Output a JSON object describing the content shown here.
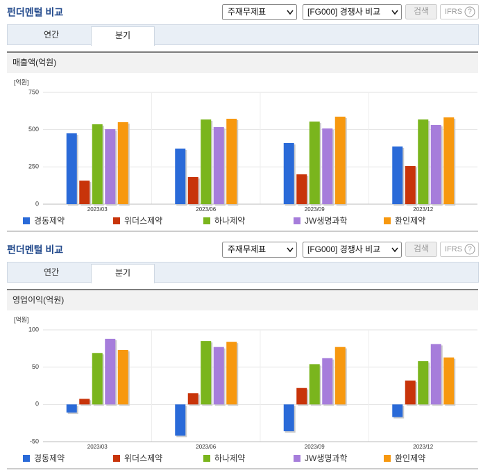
{
  "panels": [
    {
      "title": "펀더멘털 비교",
      "select1": "주재무제표",
      "select2": "[FG000] 경쟁사 비교",
      "search": "검색",
      "ifrs": "IFRS",
      "help": "?",
      "tabs": [
        "연간",
        "분기"
      ]
    },
    {
      "title": "펀더멘털 비교",
      "select1": "주재무제표",
      "select2": "[FG000] 경쟁사 비교",
      "search": "검색",
      "ifrs": "IFRS",
      "help": "?",
      "tabs": [
        "연간",
        "분기"
      ]
    }
  ],
  "chart_data": [
    {
      "type": "bar",
      "title": "매출액(억원)",
      "ylabel": "[억원]",
      "categories": [
        "2023/03",
        "2023/06",
        "2023/09",
        "2023/12"
      ],
      "series": [
        {
          "name": "경동제약",
          "color": "#2a6ad8",
          "values": [
            475,
            373,
            410,
            387
          ]
        },
        {
          "name": "위더스제약",
          "color": "#c8340a",
          "values": [
            158,
            182,
            200,
            256
          ]
        },
        {
          "name": "하나제약",
          "color": "#7ab51d",
          "values": [
            536,
            568,
            554,
            568
          ]
        },
        {
          "name": "JW생명과학",
          "color": "#a67ddb",
          "values": [
            503,
            517,
            508,
            531
          ]
        },
        {
          "name": "환인제약",
          "color": "#f7980f",
          "values": [
            550,
            573,
            587,
            582
          ]
        }
      ],
      "ylim": [
        0,
        750
      ],
      "yticks": [
        0,
        250,
        500,
        750
      ],
      "grid": true
    },
    {
      "type": "bar",
      "title": "영업이익(억원)",
      "ylabel": "[억원]",
      "categories": [
        "2023/03",
        "2023/06",
        "2023/09",
        "2023/12"
      ],
      "series": [
        {
          "name": "경동제약",
          "color": "#2a6ad8",
          "values": [
            -11,
            -42,
            -36,
            -17
          ]
        },
        {
          "name": "위더스제약",
          "color": "#c8340a",
          "values": [
            7.5,
            15,
            22,
            32
          ]
        },
        {
          "name": "하나제약",
          "color": "#7ab51d",
          "values": [
            69,
            85,
            54,
            58
          ]
        },
        {
          "name": "JW생명과학",
          "color": "#a67ddb",
          "values": [
            88,
            77,
            62,
            81
          ]
        },
        {
          "name": "환인제약",
          "color": "#f7980f",
          "values": [
            73,
            84,
            77,
            63
          ]
        }
      ],
      "ylim": [
        -50,
        100
      ],
      "yticks": [
        -50,
        0,
        50,
        100
      ],
      "grid": true
    }
  ]
}
